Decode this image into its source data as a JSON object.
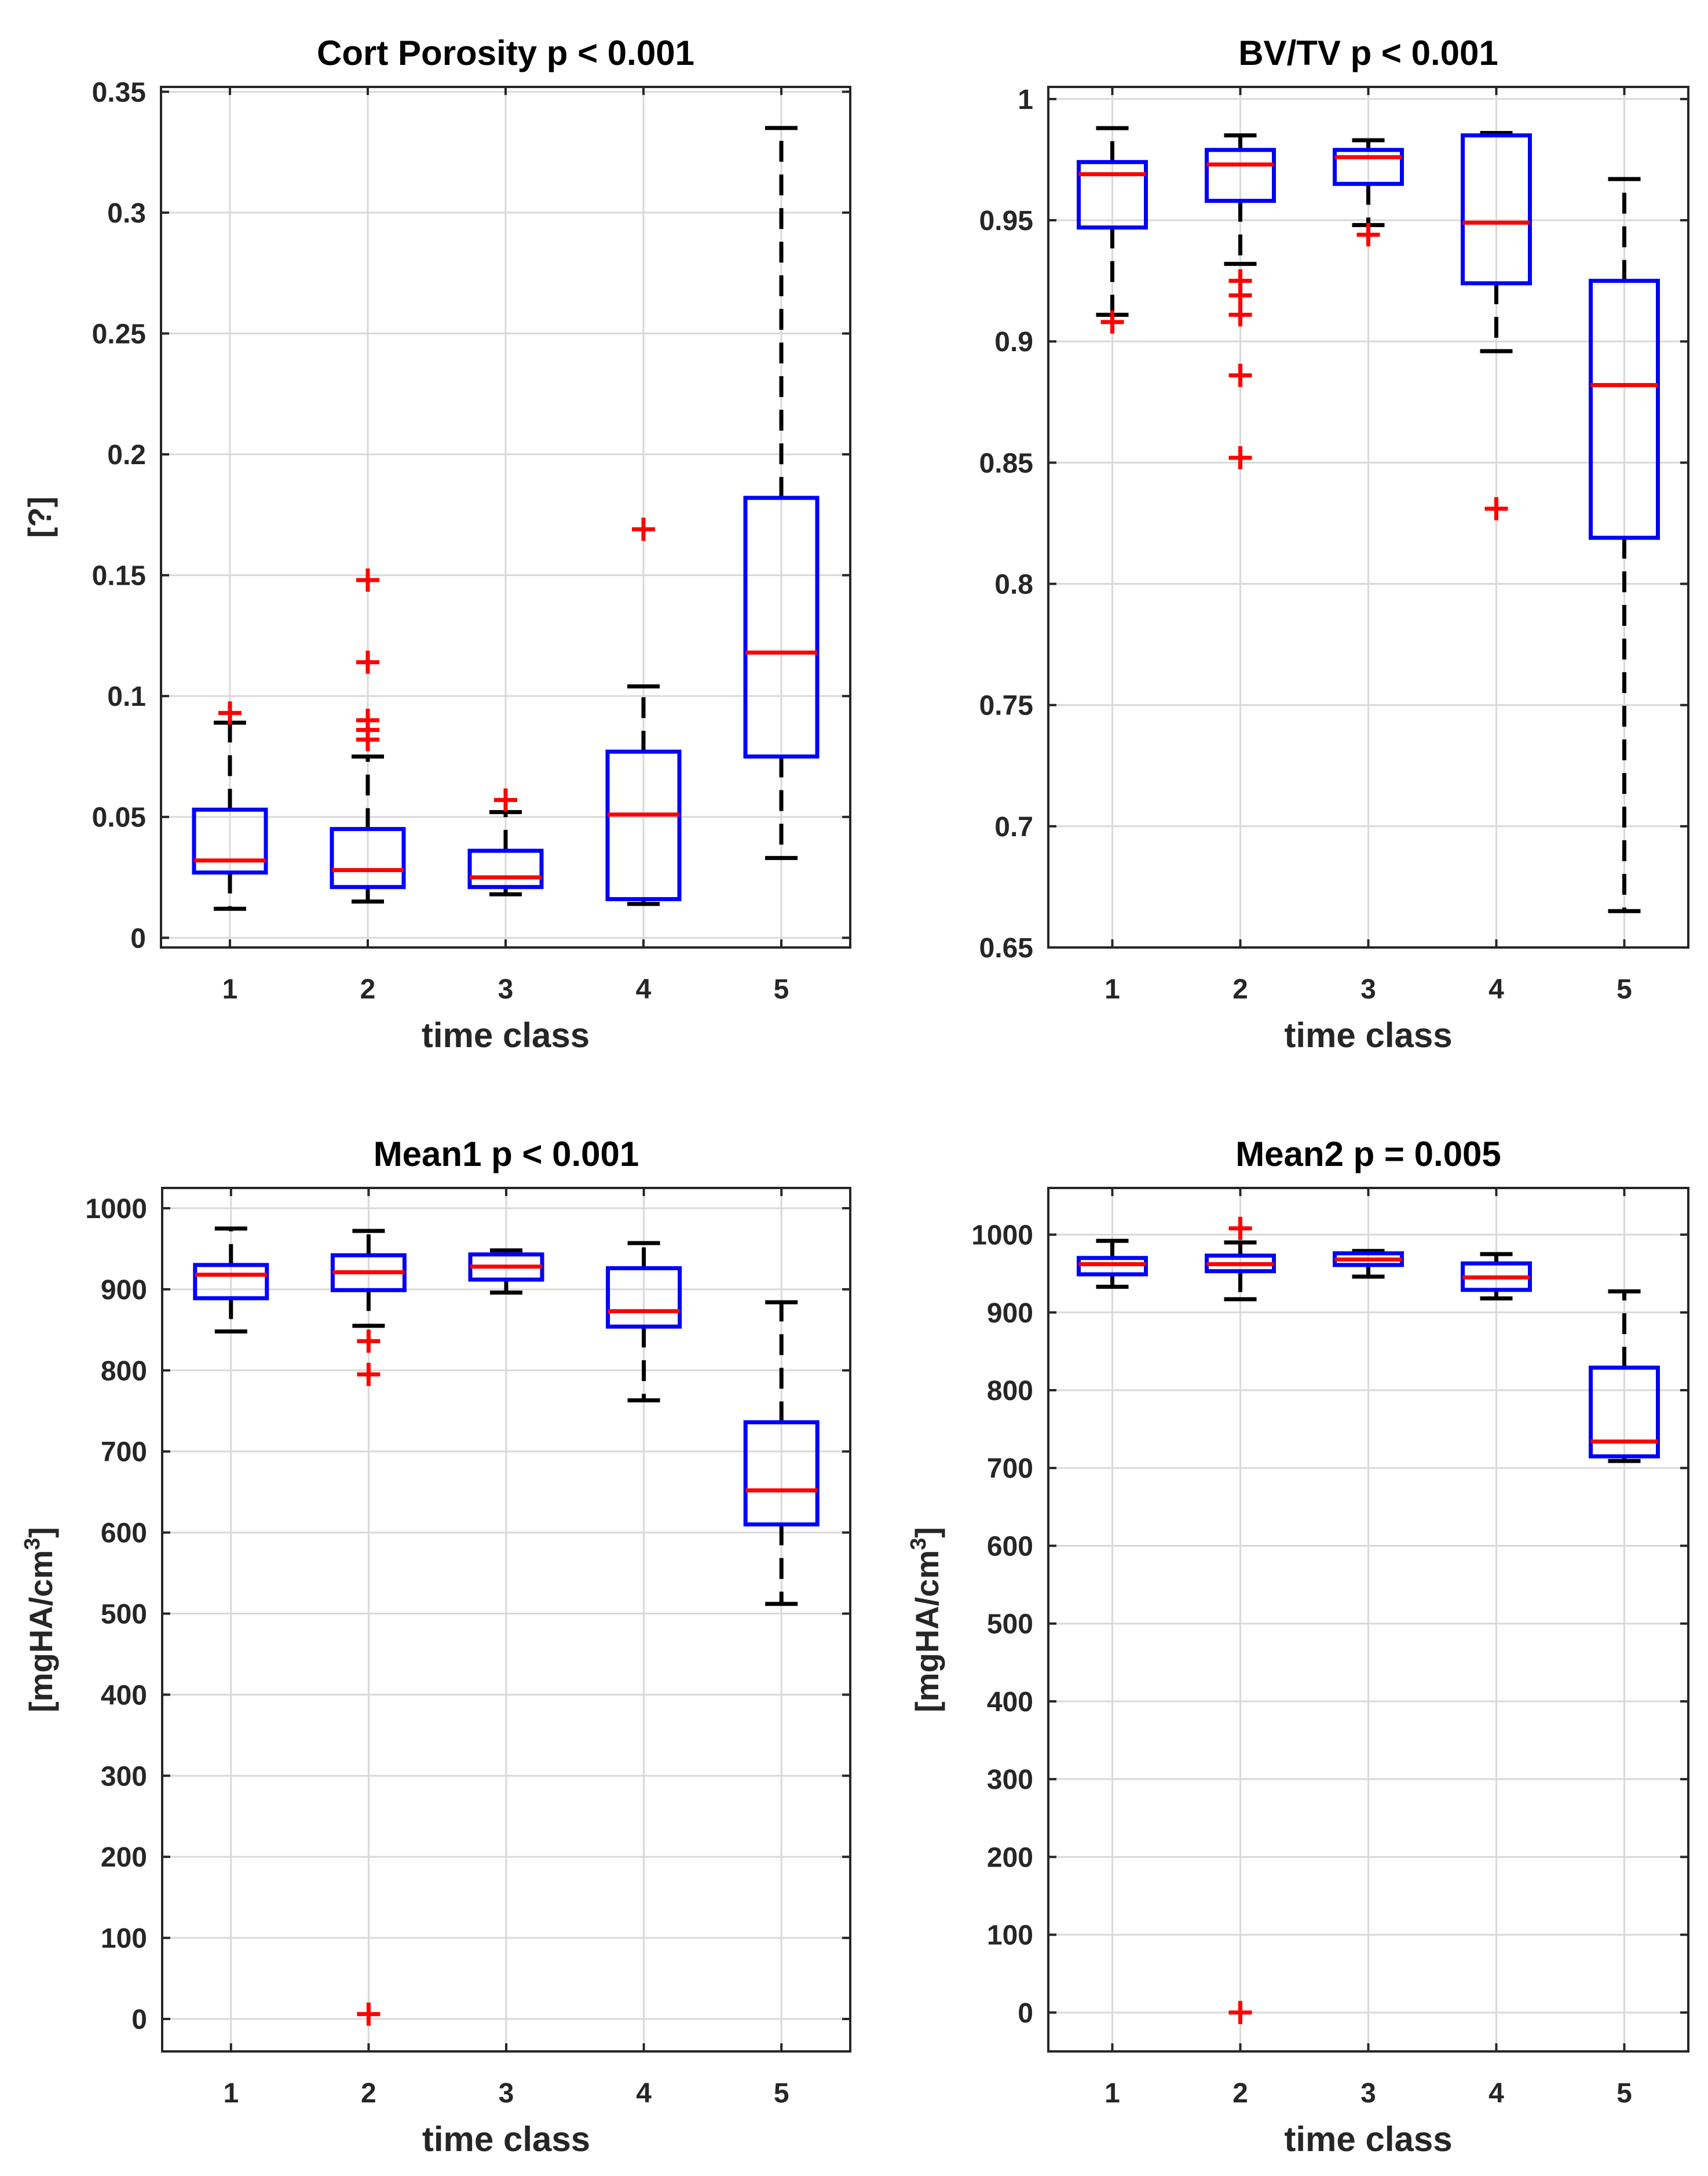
{
  "colors": {
    "box": "#0000FF",
    "median": "#FF0000",
    "outlier": "#FF0000",
    "whisker": "#000000",
    "grid": "#D9D9D9",
    "axis": "#262626"
  },
  "chart_data": [
    {
      "type": "boxplot",
      "title": "Cort Porosity p < 0.001",
      "xlabel": "time class",
      "ylabel": "[?]",
      "categories": [
        "1",
        "2",
        "3",
        "4",
        "5"
      ],
      "ylim": [
        -0.004,
        0.352
      ],
      "yticks": [
        0,
        0.05,
        0.1,
        0.15,
        0.2,
        0.25,
        0.3,
        0.35
      ],
      "ytick_labels": [
        "0",
        "0.05",
        "0.1",
        "0.15",
        "0.2",
        "0.25",
        "0.3",
        "0.35"
      ],
      "grid": true,
      "boxes": [
        {
          "category": "1",
          "whisker_low": 0.012,
          "q1": 0.027,
          "median": 0.032,
          "q3": 0.053,
          "whisker_high": 0.089,
          "outliers": [
            0.093
          ]
        },
        {
          "category": "2",
          "whisker_low": 0.015,
          "q1": 0.021,
          "median": 0.028,
          "q3": 0.045,
          "whisker_high": 0.075,
          "outliers": [
            0.148,
            0.114,
            0.09,
            0.086,
            0.082
          ]
        },
        {
          "category": "3",
          "whisker_low": 0.018,
          "q1": 0.021,
          "median": 0.025,
          "q3": 0.036,
          "whisker_high": 0.052,
          "outliers": [
            0.057
          ]
        },
        {
          "category": "4",
          "whisker_low": 0.014,
          "q1": 0.016,
          "median": 0.051,
          "q3": 0.077,
          "whisker_high": 0.104,
          "outliers": [
            0.169
          ]
        },
        {
          "category": "5",
          "whisker_low": 0.033,
          "q1": 0.075,
          "median": 0.118,
          "q3": 0.182,
          "whisker_high": 0.335,
          "outliers": []
        }
      ]
    },
    {
      "type": "boxplot",
      "title": "BV/TV p < 0.001",
      "xlabel": "time class",
      "ylabel": "",
      "categories": [
        "1",
        "2",
        "3",
        "4",
        "5"
      ],
      "ylim": [
        0.65,
        1.005
      ],
      "yticks": [
        0.65,
        0.7,
        0.75,
        0.8,
        0.85,
        0.9,
        0.95,
        1
      ],
      "ytick_labels": [
        "0.65",
        "0.7",
        "0.75",
        "0.8",
        "0.85",
        "0.9",
        "0.95",
        "1"
      ],
      "grid": true,
      "boxes": [
        {
          "category": "1",
          "whisker_low": 0.911,
          "q1": 0.947,
          "median": 0.969,
          "q3": 0.974,
          "whisker_high": 0.988,
          "outliers": [
            0.908
          ]
        },
        {
          "category": "2",
          "whisker_low": 0.932,
          "q1": 0.958,
          "median": 0.973,
          "q3": 0.979,
          "whisker_high": 0.985,
          "outliers": [
            0.925,
            0.919,
            0.911,
            0.886,
            0.852
          ]
        },
        {
          "category": "3",
          "whisker_low": 0.948,
          "q1": 0.965,
          "median": 0.976,
          "q3": 0.979,
          "whisker_high": 0.983,
          "outliers": [
            0.944
          ]
        },
        {
          "category": "4",
          "whisker_low": 0.896,
          "q1": 0.924,
          "median": 0.949,
          "q3": 0.985,
          "whisker_high": 0.986,
          "outliers": [
            0.831
          ]
        },
        {
          "category": "5",
          "whisker_low": 0.665,
          "q1": 0.819,
          "median": 0.882,
          "q3": 0.925,
          "whisker_high": 0.967,
          "outliers": []
        }
      ]
    },
    {
      "type": "boxplot",
      "title": "Mean1 p < 0.001",
      "xlabel": "time class",
      "ylabel": "[mgHA/cm",
      "ylabel_superscript": "3",
      "ylabel_suffix": "]",
      "categories": [
        "1",
        "2",
        "3",
        "4",
        "5"
      ],
      "ylim": [
        -40,
        1025
      ],
      "yticks": [
        0,
        100,
        200,
        300,
        400,
        500,
        600,
        700,
        800,
        900,
        1000
      ],
      "ytick_labels": [
        "0",
        "100",
        "200",
        "300",
        "400",
        "500",
        "600",
        "700",
        "800",
        "900",
        "1000"
      ],
      "grid": true,
      "boxes": [
        {
          "category": "1",
          "whisker_low": 848,
          "q1": 889,
          "median": 918,
          "q3": 930,
          "whisker_high": 975,
          "outliers": []
        },
        {
          "category": "2",
          "whisker_low": 855,
          "q1": 899,
          "median": 921,
          "q3": 942,
          "whisker_high": 972,
          "outliers": [
            836,
            795,
            6
          ]
        },
        {
          "category": "3",
          "whisker_low": 896,
          "q1": 912,
          "median": 928,
          "q3": 943,
          "whisker_high": 948,
          "outliers": []
        },
        {
          "category": "4",
          "whisker_low": 763,
          "q1": 854,
          "median": 873,
          "q3": 926,
          "whisker_high": 957,
          "outliers": []
        },
        {
          "category": "5",
          "whisker_low": 512,
          "q1": 610,
          "median": 652,
          "q3": 736,
          "whisker_high": 884,
          "outliers": []
        }
      ]
    },
    {
      "type": "boxplot",
      "title": "Mean2 p = 0.005",
      "xlabel": "time class",
      "ylabel": "[mgHA/cm",
      "ylabel_superscript": "3",
      "ylabel_suffix": "]",
      "categories": [
        "1",
        "2",
        "3",
        "4",
        "5"
      ],
      "ylim": [
        -50,
        1060
      ],
      "yticks": [
        0,
        100,
        200,
        300,
        400,
        500,
        600,
        700,
        800,
        900,
        1000
      ],
      "ytick_labels": [
        "0",
        "100",
        "200",
        "300",
        "400",
        "500",
        "600",
        "700",
        "800",
        "900",
        "1000"
      ],
      "grid": true,
      "boxes": [
        {
          "category": "1",
          "whisker_low": 933,
          "q1": 949,
          "median": 962,
          "q3": 970,
          "whisker_high": 992,
          "outliers": []
        },
        {
          "category": "2",
          "whisker_low": 917,
          "q1": 953,
          "median": 962,
          "q3": 973,
          "whisker_high": 990,
          "outliers": [
            1008,
            0
          ]
        },
        {
          "category": "3",
          "whisker_low": 946,
          "q1": 961,
          "median": 968,
          "q3": 976,
          "whisker_high": 979,
          "outliers": []
        },
        {
          "category": "4",
          "whisker_low": 918,
          "q1": 929,
          "median": 945,
          "q3": 963,
          "whisker_high": 975,
          "outliers": []
        },
        {
          "category": "5",
          "whisker_low": 709,
          "q1": 715,
          "median": 734,
          "q3": 829,
          "whisker_high": 927,
          "outliers": []
        }
      ]
    }
  ]
}
